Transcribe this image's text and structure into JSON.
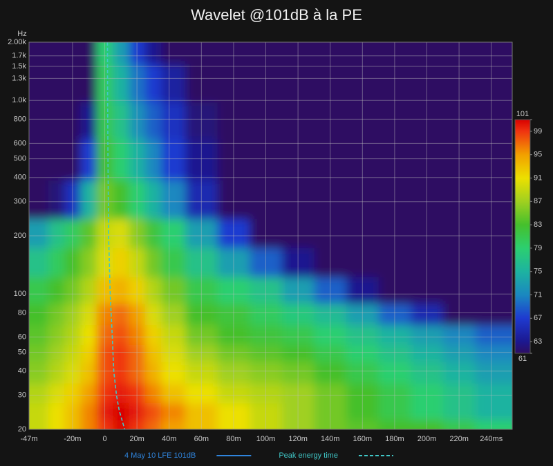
{
  "chart_data": {
    "type": "heatmap",
    "title": "Wavelet @101dB à la PE",
    "y_label": "Hz",
    "log_y": true,
    "grid": true,
    "xlim": [
      -47,
      253
    ],
    "ylim": [
      20,
      2000
    ],
    "xticks": [
      {
        "value": -47,
        "label": "-47m"
      },
      {
        "value": -20,
        "label": "-20m"
      },
      0,
      {
        "value": 20,
        "label": "20m"
      },
      {
        "value": 40,
        "label": "40m"
      },
      {
        "value": 60,
        "label": "60m"
      },
      {
        "value": 80,
        "label": "80m"
      },
      {
        "value": 100,
        "label": "100m"
      },
      {
        "value": 120,
        "label": "120m"
      },
      {
        "value": 140,
        "label": "140m"
      },
      {
        "value": 160,
        "label": "160m"
      },
      {
        "value": 180,
        "label": "180m"
      },
      {
        "value": 200,
        "label": "200m"
      },
      {
        "value": 220,
        "label": "220m"
      },
      {
        "value": 240,
        "label": "240ms"
      }
    ],
    "yticks": [
      20,
      30,
      40,
      50,
      60,
      80,
      100,
      200,
      300,
      400,
      500,
      600,
      800,
      {
        "value": 1000,
        "label": "1.0k"
      },
      {
        "value": 1300,
        "label": "1.3k"
      },
      {
        "value": 1500,
        "label": "1.5k"
      },
      {
        "value": 1700,
        "label": "1.7k"
      },
      {
        "value": 2000,
        "label": "2.00k"
      }
    ],
    "x": [
      -40,
      -30,
      -20,
      -10,
      0,
      10,
      20,
      30,
      40,
      60,
      80,
      100,
      120,
      140,
      160,
      180,
      200,
      220,
      240
    ],
    "y": [
      20,
      25,
      30,
      40,
      50,
      60,
      80,
      100,
      150,
      200,
      300,
      500,
      800,
      1200,
      2000
    ],
    "z": [
      [
        89,
        91,
        93,
        96,
        99,
        101,
        99,
        97,
        95,
        93,
        91,
        89,
        87,
        85,
        84,
        83,
        83,
        81,
        79
      ],
      [
        89,
        91,
        93,
        96,
        100,
        101,
        100,
        98,
        96,
        93,
        91,
        89,
        87,
        85,
        83,
        81,
        79,
        77,
        75
      ],
      [
        88,
        90,
        92,
        95,
        99,
        100,
        99,
        96,
        93,
        91,
        89,
        88,
        87,
        85,
        83,
        81,
        79,
        77,
        75
      ],
      [
        86,
        88,
        90,
        93,
        98,
        99,
        97,
        94,
        91,
        89,
        87,
        86,
        85,
        83,
        81,
        79,
        77,
        75,
        73
      ],
      [
        85,
        87,
        89,
        92,
        98,
        99,
        97,
        93,
        90,
        87,
        85,
        84,
        83,
        81,
        79,
        77,
        75,
        73,
        71
      ],
      [
        84,
        86,
        88,
        91,
        97,
        98,
        96,
        92,
        89,
        85,
        83,
        82,
        81,
        79,
        77,
        75,
        73,
        71,
        69
      ],
      [
        83,
        85,
        87,
        90,
        96,
        97,
        95,
        90,
        87,
        83,
        82,
        80,
        78,
        76,
        73,
        69,
        65,
        61,
        55
      ],
      [
        81,
        83,
        85,
        88,
        93,
        94,
        92,
        88,
        85,
        81,
        79,
        77,
        73,
        69,
        63,
        55,
        55,
        55,
        55
      ],
      [
        77,
        80,
        83,
        86,
        90,
        92,
        89,
        85,
        81,
        77,
        73,
        69,
        63,
        55,
        55,
        55,
        55,
        55,
        55
      ],
      [
        73,
        77,
        80,
        84,
        89,
        90,
        86,
        82,
        79,
        73,
        67,
        61,
        55,
        55,
        55,
        55,
        55,
        55,
        55
      ],
      [
        55,
        62,
        66,
        75,
        85,
        83,
        79,
        75,
        71,
        65,
        60,
        55,
        55,
        55,
        55,
        55,
        55,
        55,
        55
      ],
      [
        55,
        55,
        60,
        67,
        83,
        79,
        75,
        71,
        67,
        63,
        55,
        55,
        55,
        55,
        55,
        55,
        55,
        55,
        55
      ],
      [
        55,
        55,
        55,
        63,
        81,
        77,
        72,
        69,
        66,
        62,
        55,
        55,
        55,
        55,
        55,
        55,
        55,
        55,
        55
      ],
      [
        55,
        55,
        55,
        60,
        80,
        75,
        70,
        67,
        64,
        60,
        55,
        55,
        55,
        55,
        55,
        55,
        55,
        55,
        55
      ],
      [
        55,
        55,
        55,
        57,
        79,
        73,
        67,
        63,
        61,
        55,
        55,
        55,
        55,
        55,
        55,
        55,
        55,
        55,
        55
      ]
    ],
    "zlim": [
      61,
      101
    ],
    "zticks": [
      101,
      99,
      95,
      91,
      87,
      83,
      79,
      75,
      71,
      67,
      63,
      61
    ],
    "colorscale": [
      {
        "value": 61,
        "color": "#2e0e62"
      },
      {
        "value": 63,
        "color": "#1c1890"
      },
      {
        "value": 67,
        "color": "#1e3ad0"
      },
      {
        "value": 71,
        "color": "#1a88c0"
      },
      {
        "value": 75,
        "color": "#1db3a0"
      },
      {
        "value": 79,
        "color": "#2ccf70"
      },
      {
        "value": 83,
        "color": "#45c02c"
      },
      {
        "value": 87,
        "color": "#a0d020"
      },
      {
        "value": 91,
        "color": "#ece000"
      },
      {
        "value": 95,
        "color": "#f2a000"
      },
      {
        "value": 99,
        "color": "#f03410"
      },
      {
        "value": 101,
        "color": "#d80000"
      }
    ],
    "series": [
      {
        "name": "4 May 10 LFE 101dB",
        "color": "#2f84dc"
      },
      {
        "name": "Peak energy time",
        "color": "#40c8c8",
        "dash": true,
        "x": [
          1.7,
          1.8,
          2,
          2.4,
          3.4,
          4.7,
          5.6,
          7.3,
          9,
          12.4
        ],
        "y": [
          2000,
          1000,
          500,
          200,
          100,
          60,
          40,
          30,
          25,
          20
        ]
      }
    ]
  }
}
